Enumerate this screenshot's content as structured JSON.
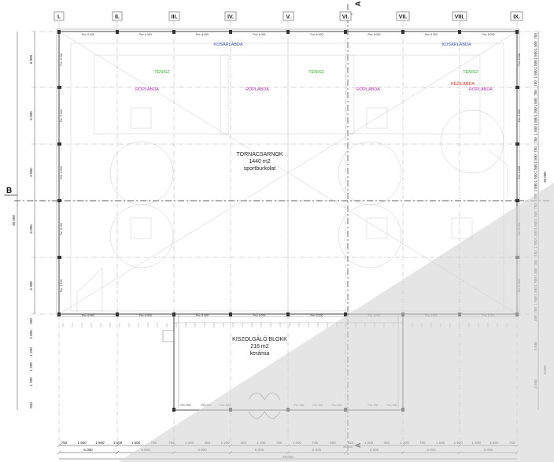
{
  "axes": {
    "columns": [
      "I.",
      "II.",
      "III.",
      "IV.",
      "V.",
      "VI.",
      "VII.",
      "VIII.",
      "IX."
    ],
    "section_a": "A",
    "section_b": "B"
  },
  "rooms": {
    "hall_name": "TORNACSARNOK",
    "hall_area": "1440 m2",
    "hall_floor": "sportburkolat",
    "service_name": "KISZOLGÁLÓ BLOKK",
    "service_area": "216 m2",
    "service_floor": "kerámia"
  },
  "court_labels": {
    "basketball": "KOSÁRLABDA",
    "tennis": "TENISZ",
    "volleyball": "RÖPLABDA",
    "handball": "KÉZILABDA"
  },
  "colors": {
    "basketball": "#3a4fc8",
    "tennis": "#2fae2a",
    "volleyball": "#b52fb5",
    "handball": "#e0321e"
  },
  "dimensions": {
    "left_segments": [
      "6 000",
      "6 000",
      "6 000",
      "6 000",
      "6 000"
    ],
    "left_total": "39 500",
    "left_service": [
      "500",
      "2 600",
      "1 200",
      "1 200",
      "1 200",
      "840"
    ],
    "right_column": [
      "750",
      "1 500",
      "1 500",
      "1 500",
      "1 500",
      "750"
    ],
    "right_total": "30 000",
    "right_service": [
      "500",
      "4 500",
      "4 500",
      "9 000"
    ],
    "bottom_chain": [
      "750",
      "1 500",
      "1 500",
      "1 500",
      "1 500",
      "750",
      "735",
      "1 200",
      "650",
      "1 200",
      "365",
      "1 200",
      "750",
      "1 000",
      "735",
      "650",
      "650",
      "1 200",
      "365",
      "1 200",
      "750",
      "1 500",
      "1 500",
      "1 500",
      "1 500",
      "750"
    ],
    "bottom_bays": [
      "6 000",
      "6 000",
      "6 000",
      "6 000",
      "6 000",
      "6 000",
      "6 000",
      "6 000"
    ],
    "bottom_total": "48 000"
  },
  "openings": {
    "window_tag": "Pm: 6 000",
    "door_tag": "Pm: 900",
    "side_tag": "Pm: 6 000"
  }
}
